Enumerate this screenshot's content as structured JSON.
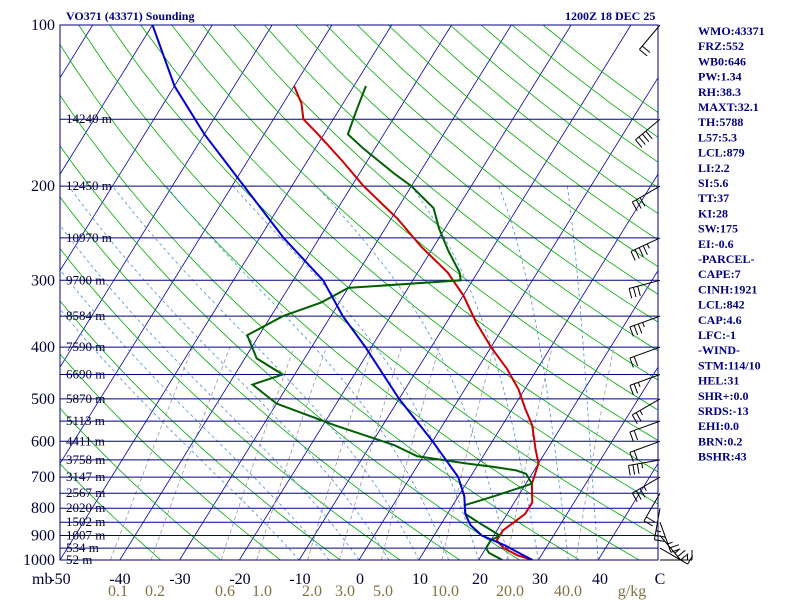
{
  "header": {
    "title": "VO371 (43371) Sounding",
    "valid_time": "1200Z 18 DEC 25"
  },
  "indices": [
    "WMO:43371",
    "FRZ:552",
    "WB0:646",
    "PW:1.34",
    "RH:38.3",
    "MAXT:32.1",
    "TH:5788",
    "L57:5.3",
    "LCL:879",
    "LI:2.2",
    "SI:5.6",
    "TT:37",
    "KI:28",
    "SW:175",
    "EI:-0.6",
    "-PARCEL-",
    "CAPE:7",
    "CINH:1921",
    "LCL:842",
    "CAP:4.6",
    "LFC:-1",
    "-WIND-",
    "STM:114/10",
    "HEL:31",
    "SHR+:0.0",
    "SRDS:-13",
    "EHI:0.0",
    "BRN:0.2",
    "BSHR:43"
  ],
  "axis": {
    "pressure_label": "mb",
    "pressure_ticks": [
      "100",
      "200",
      "300",
      "400",
      "500",
      "600",
      "700",
      "800",
      "900",
      "1000"
    ],
    "temperature_ticks": [
      "-50",
      "-40",
      "-30",
      "-20",
      "-10",
      "0",
      "10",
      "20",
      "30",
      "40",
      "C"
    ],
    "mixing_ratio_ticks": [
      "0.1",
      "0.2",
      "0.6",
      "1.0",
      "2.0",
      "3.0",
      "5.0",
      "10.0",
      "20.0",
      "40.0",
      "g/kg"
    ]
  },
  "colors": {
    "isobar": "#000080",
    "isotherm": "#0000aa",
    "dry_adiabat": "#00aa00",
    "moist_adiabat": "#4a90d0",
    "mixing_ratio": "#999999",
    "temperature": "#cc0000",
    "dewpoint": "#006000",
    "parcel": "#0000cc"
  },
  "chart_data": {
    "type": "skew-t",
    "title": "VO371 (43371) Sounding",
    "time": "1200Z 18 DEC 25",
    "x_unit": "C",
    "y_unit": "mb",
    "xlim": [
      -50,
      50
    ],
    "ylim": [
      1000,
      100
    ],
    "heights": [
      {
        "p": 150,
        "label": "14240 m"
      },
      {
        "p": 200,
        "label": "12450 m"
      },
      {
        "p": 250,
        "label": "10970 m"
      },
      {
        "p": 300,
        "label": "9700 m"
      },
      {
        "p": 350,
        "label": "8584 m"
      },
      {
        "p": 400,
        "label": "7590 m"
      },
      {
        "p": 450,
        "label": "6690 m"
      },
      {
        "p": 500,
        "label": "5870 m"
      },
      {
        "p": 550,
        "label": "5113 m"
      },
      {
        "p": 600,
        "label": "4411 m"
      },
      {
        "p": 650,
        "label": "3758 m"
      },
      {
        "p": 700,
        "label": "3147 m"
      },
      {
        "p": 750,
        "label": "2567 m"
      },
      {
        "p": 800,
        "label": "2020 m"
      },
      {
        "p": 850,
        "label": "1502 m"
      },
      {
        "p": 900,
        "label": "1007 m"
      },
      {
        "p": 950,
        "label": "534 m"
      },
      {
        "p": 1000,
        "label": "52 m"
      }
    ],
    "series": [
      {
        "key": "temperature",
        "values": [
          [
            1000,
            29
          ],
          [
            980,
            26
          ],
          [
            950,
            23
          ],
          [
            920,
            21
          ],
          [
            880,
            21
          ],
          [
            850,
            22
          ],
          [
            820,
            23
          ],
          [
            780,
            23
          ],
          [
            720,
            21
          ],
          [
            660,
            20
          ],
          [
            620,
            18
          ],
          [
            560,
            15
          ],
          [
            520,
            12
          ],
          [
            480,
            9
          ],
          [
            440,
            5
          ],
          [
            400,
            0
          ],
          [
            360,
            -5
          ],
          [
            320,
            -10
          ],
          [
            290,
            -15
          ],
          [
            260,
            -22
          ],
          [
            230,
            -29
          ],
          [
            200,
            -38
          ],
          [
            180,
            -44
          ],
          [
            160,
            -51
          ],
          [
            150,
            -55
          ],
          [
            140,
            -57
          ],
          [
            130,
            -60
          ]
        ]
      },
      {
        "key": "dewpoint",
        "values": [
          [
            1000,
            24
          ],
          [
            990,
            23
          ],
          [
            970,
            21
          ],
          [
            950,
            20
          ],
          [
            920,
            20
          ],
          [
            900,
            21
          ],
          [
            850,
            16
          ],
          [
            820,
            13
          ],
          [
            790,
            12
          ],
          [
            760,
            16
          ],
          [
            720,
            21
          ],
          [
            690,
            19
          ],
          [
            680,
            17
          ],
          [
            670,
            13
          ],
          [
            660,
            8
          ],
          [
            640,
            -1
          ],
          [
            610,
            -6
          ],
          [
            560,
            -18
          ],
          [
            510,
            -30
          ],
          [
            470,
            -36
          ],
          [
            450,
            -32
          ],
          [
            420,
            -38
          ],
          [
            380,
            -42
          ],
          [
            350,
            -38
          ],
          [
            330,
            -33
          ],
          [
            310,
            -30
          ],
          [
            300,
            -12
          ],
          [
            290,
            -13
          ],
          [
            265,
            -17
          ],
          [
            240,
            -21
          ],
          [
            220,
            -24
          ],
          [
            200,
            -30
          ],
          [
            190,
            -34
          ],
          [
            170,
            -42
          ],
          [
            160,
            -46
          ],
          [
            145,
            -47
          ],
          [
            130,
            -48
          ]
        ]
      },
      {
        "key": "parcel",
        "values": [
          [
            1000,
            29
          ],
          [
            960,
            25
          ],
          [
            940,
            23
          ],
          [
            900,
            18
          ],
          [
            860,
            15
          ],
          [
            820,
            13
          ],
          [
            760,
            11
          ],
          [
            700,
            8
          ],
          [
            600,
            0
          ],
          [
            500,
            -10
          ],
          [
            400,
            -21
          ],
          [
            350,
            -28
          ],
          [
            300,
            -35
          ],
          [
            250,
            -46
          ],
          [
            200,
            -58
          ],
          [
            160,
            -70
          ],
          [
            130,
            -80
          ],
          [
            100,
            -90
          ]
        ]
      }
    ],
    "wind_barbs": [
      {
        "p": 1000,
        "dir": 90,
        "spd": 5
      },
      {
        "p": 950,
        "dir": 120,
        "spd": 10
      },
      {
        "p": 900,
        "dir": 140,
        "spd": 15
      },
      {
        "p": 850,
        "dir": 160,
        "spd": 15
      },
      {
        "p": 800,
        "dir": 190,
        "spd": 15
      },
      {
        "p": 750,
        "dir": 210,
        "spd": 20
      },
      {
        "p": 700,
        "dir": 240,
        "spd": 25
      },
      {
        "p": 650,
        "dir": 260,
        "spd": 25
      },
      {
        "p": 600,
        "dir": 250,
        "spd": 20
      },
      {
        "p": 550,
        "dir": 250,
        "spd": 20
      },
      {
        "p": 500,
        "dir": 240,
        "spd": 15
      },
      {
        "p": 450,
        "dir": 250,
        "spd": 15
      },
      {
        "p": 400,
        "dir": 250,
        "spd": 20
      },
      {
        "p": 350,
        "dir": 250,
        "spd": 25
      },
      {
        "p": 300,
        "dir": 255,
        "spd": 30
      },
      {
        "p": 250,
        "dir": 245,
        "spd": 35
      },
      {
        "p": 200,
        "dir": 240,
        "spd": 30
      },
      {
        "p": 150,
        "dir": 230,
        "spd": 40
      },
      {
        "p": 100,
        "dir": 220,
        "spd": 20
      }
    ]
  }
}
